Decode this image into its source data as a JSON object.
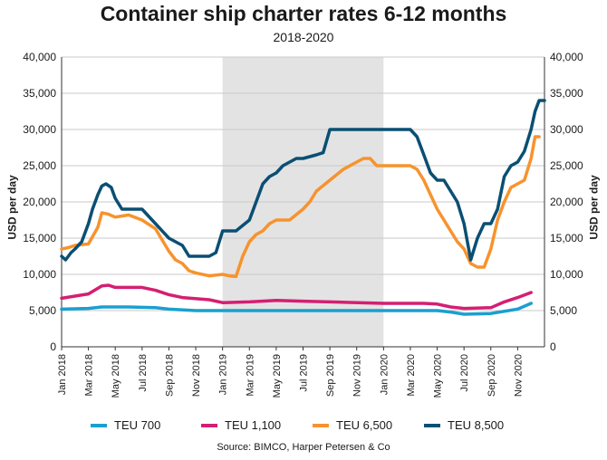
{
  "chart_data": {
    "type": "line",
    "title": "Container ship charter rates 6-12 months",
    "subtitle": "2018-2020",
    "ylabel_left": "USD per day",
    "ylabel_right": "USD per day",
    "ylim": [
      0,
      40000
    ],
    "yticks": [
      "0",
      "5,000",
      "10,000",
      "15,000",
      "20,000",
      "25,000",
      "30,000",
      "35,000",
      "40,000"
    ],
    "xticks": [
      "Jan 2018",
      "Mar 2018",
      "May 2018",
      "Jul 2018",
      "Sep 2018",
      "Nov 2018",
      "Jan 2019",
      "Mar 2019",
      "May 2019",
      "Jul 2019",
      "Sep 2019",
      "Nov 2019",
      "Jan 2020",
      "Mar 2020",
      "May 2020",
      "Jul 2020",
      "Sep 2020",
      "Nov 2020"
    ],
    "x_range_months": [
      0,
      35
    ],
    "shaded_region": {
      "from": "Jan 2019",
      "to": "Jan 2020"
    },
    "source": "Source: BIMCO, Harper Petersen & Co",
    "series": [
      {
        "name": "TEU 700",
        "color": "#1a9fd0",
        "points": [
          [
            0,
            5200
          ],
          [
            2,
            5300
          ],
          [
            3,
            5500
          ],
          [
            5,
            5500
          ],
          [
            7,
            5400
          ],
          [
            8,
            5200
          ],
          [
            10,
            5000
          ],
          [
            14,
            5000
          ],
          [
            21,
            5000
          ],
          [
            26,
            5000
          ],
          [
            28,
            5000
          ],
          [
            29,
            4800
          ],
          [
            30,
            4500
          ],
          [
            32,
            4600
          ],
          [
            34,
            5200
          ],
          [
            35,
            6000
          ]
        ]
      },
      {
        "name": "TEU 1,100",
        "color": "#d41f72",
        "points": [
          [
            0,
            6700
          ],
          [
            1,
            7000
          ],
          [
            2,
            7300
          ],
          [
            3,
            8400
          ],
          [
            3.5,
            8500
          ],
          [
            4,
            8200
          ],
          [
            6,
            8200
          ],
          [
            7,
            7800
          ],
          [
            8,
            7200
          ],
          [
            9,
            6800
          ],
          [
            11,
            6500
          ],
          [
            12,
            6100
          ],
          [
            14,
            6200
          ],
          [
            16,
            6400
          ],
          [
            18,
            6300
          ],
          [
            20,
            6200
          ],
          [
            24,
            6000
          ],
          [
            27,
            6000
          ],
          [
            28,
            5900
          ],
          [
            29,
            5500
          ],
          [
            30,
            5300
          ],
          [
            32,
            5400
          ],
          [
            33,
            6200
          ],
          [
            34,
            6800
          ],
          [
            35,
            7500
          ]
        ]
      },
      {
        "name": "TEU 6,500",
        "color": "#f7932d",
        "points": [
          [
            0,
            13500
          ],
          [
            0.5,
            13700
          ],
          [
            1,
            14000
          ],
          [
            2,
            14200
          ],
          [
            2.7,
            16500
          ],
          [
            3,
            18500
          ],
          [
            3.5,
            18300
          ],
          [
            4,
            17900
          ],
          [
            5,
            18200
          ],
          [
            6,
            17500
          ],
          [
            7,
            16300
          ],
          [
            8,
            13200
          ],
          [
            8.5,
            12000
          ],
          [
            9,
            11500
          ],
          [
            9.5,
            10500
          ],
          [
            10,
            10200
          ],
          [
            11,
            9800
          ],
          [
            12,
            10000
          ],
          [
            12.5,
            9800
          ],
          [
            13,
            9700
          ],
          [
            13.5,
            12500
          ],
          [
            14,
            14500
          ],
          [
            14.5,
            15500
          ],
          [
            15,
            16000
          ],
          [
            15.5,
            17000
          ],
          [
            16,
            17500
          ],
          [
            17,
            17500
          ],
          [
            18,
            19000
          ],
          [
            18.5,
            20000
          ],
          [
            19,
            21500
          ],
          [
            20,
            23000
          ],
          [
            21,
            24500
          ],
          [
            22,
            25500
          ],
          [
            22.5,
            26000
          ],
          [
            23,
            26000
          ],
          [
            23.5,
            25000
          ],
          [
            24,
            25000
          ],
          [
            26,
            25000
          ],
          [
            26.5,
            24500
          ],
          [
            27,
            23000
          ],
          [
            27.5,
            21000
          ],
          [
            28,
            19000
          ],
          [
            29,
            16000
          ],
          [
            29.5,
            14500
          ],
          [
            30,
            13500
          ],
          [
            30.5,
            11500
          ],
          [
            31,
            11000
          ],
          [
            31.5,
            11000
          ],
          [
            32,
            13500
          ],
          [
            32.5,
            17500
          ],
          [
            33,
            20000
          ],
          [
            33.5,
            22000
          ],
          [
            34,
            22500
          ],
          [
            34.5,
            23000
          ],
          [
            35,
            26000
          ],
          [
            35.3,
            29000
          ],
          [
            35.6,
            29000
          ]
        ]
      },
      {
        "name": "TEU 8,500",
        "color": "#0a4f73",
        "points": [
          [
            0,
            12500
          ],
          [
            0.3,
            12000
          ],
          [
            0.7,
            13000
          ],
          [
            1,
            13500
          ],
          [
            1.5,
            14500
          ],
          [
            2,
            17000
          ],
          [
            2.3,
            19000
          ],
          [
            2.7,
            21000
          ],
          [
            3,
            22200
          ],
          [
            3.3,
            22500
          ],
          [
            3.7,
            22000
          ],
          [
            4,
            20500
          ],
          [
            4.5,
            19000
          ],
          [
            6,
            19000
          ],
          [
            7,
            17000
          ],
          [
            8,
            15000
          ],
          [
            8.5,
            14500
          ],
          [
            9,
            14000
          ],
          [
            9.5,
            12500
          ],
          [
            11,
            12500
          ],
          [
            11.5,
            13000
          ],
          [
            12,
            16000
          ],
          [
            13,
            16000
          ],
          [
            14,
            17500
          ],
          [
            14.5,
            20000
          ],
          [
            15,
            22500
          ],
          [
            15.5,
            23500
          ],
          [
            16,
            24000
          ],
          [
            16.5,
            25000
          ],
          [
            17,
            25500
          ],
          [
            17.5,
            26000
          ],
          [
            18,
            26000
          ],
          [
            19,
            26500
          ],
          [
            19.5,
            26800
          ],
          [
            20,
            30000
          ],
          [
            26,
            30000
          ],
          [
            26.5,
            29000
          ],
          [
            27,
            26500
          ],
          [
            27.5,
            24000
          ],
          [
            28,
            23000
          ],
          [
            28.5,
            23000
          ],
          [
            29,
            21500
          ],
          [
            29.5,
            20000
          ],
          [
            30,
            17000
          ],
          [
            30.5,
            12000
          ],
          [
            31,
            15000
          ],
          [
            31.5,
            17000
          ],
          [
            32,
            17000
          ],
          [
            32.5,
            19000
          ],
          [
            33,
            23500
          ],
          [
            33.5,
            25000
          ],
          [
            34,
            25500
          ],
          [
            34.5,
            27000
          ],
          [
            35,
            30000
          ],
          [
            35.3,
            32500
          ],
          [
            35.6,
            34000
          ],
          [
            36,
            34000
          ]
        ]
      }
    ]
  }
}
